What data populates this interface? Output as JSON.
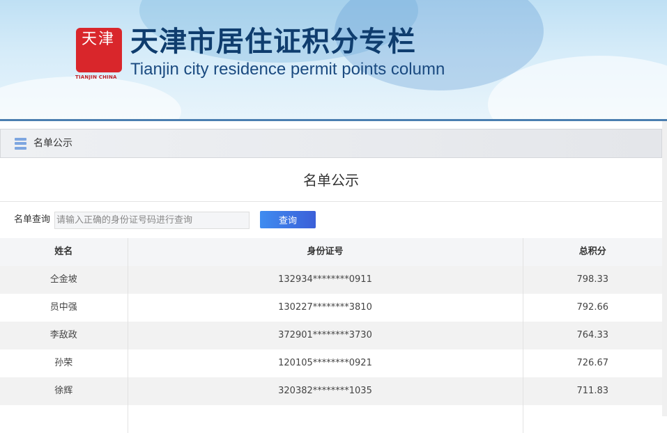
{
  "banner": {
    "seal_text": "天津",
    "seal_sub": "TIANJIN CHINA",
    "title_cn": "天津市居住证积分专栏",
    "title_en": "Tianjin city residence permit points column"
  },
  "breadcrumb": {
    "icon": "list-icon",
    "label": "名单公示"
  },
  "main": {
    "title": "名单公示",
    "search": {
      "label": "名单查询",
      "value": "",
      "placeholder": "请输入正确的身份证号码进行查询",
      "button": "查询"
    },
    "table": {
      "headers": [
        "姓名",
        "身份证号",
        "总积分"
      ],
      "rows": [
        {
          "name": "仝金坡",
          "id": "132934********0911",
          "score": "798.33"
        },
        {
          "name": "员中强",
          "id": "130227********3810",
          "score": "792.66"
        },
        {
          "name": "李敌政",
          "id": "372901********3730",
          "score": "764.33"
        },
        {
          "name": "孙荣",
          "id": "120105********0921",
          "score": "726.67"
        },
        {
          "name": "徐辉",
          "id": "320382********1035",
          "score": "711.83"
        }
      ]
    }
  },
  "colors": {
    "accent": "#3f6fe0",
    "title": "#0f3d6e",
    "seal": "#d9262b",
    "topline": "#4a7eb0"
  }
}
